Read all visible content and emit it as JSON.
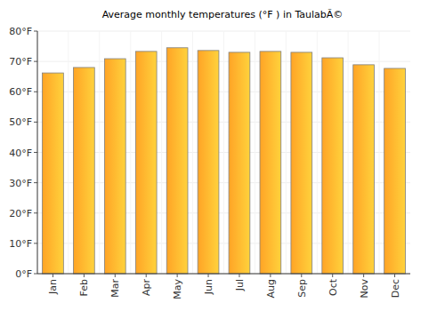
{
  "chart_data": {
    "type": "bar",
    "title": "Average monthly temperatures (°F ) in TaulabÃ©",
    "categories": [
      "Jan",
      "Feb",
      "Mar",
      "Apr",
      "May",
      "Jun",
      "Jul",
      "Aug",
      "Sep",
      "Oct",
      "Nov",
      "Dec"
    ],
    "values": [
      66.2,
      68,
      70.9,
      73.3,
      74.5,
      73.6,
      73,
      73.3,
      73,
      71.2,
      68.9,
      67.7
    ],
    "color": "#ffa426",
    "ylim": [
      0,
      80
    ],
    "yticks": [
      {
        "value": 0,
        "label": "0°F"
      },
      {
        "value": 10,
        "label": "10°F"
      },
      {
        "value": 20,
        "label": "20°F"
      },
      {
        "value": 30,
        "label": "30°F"
      },
      {
        "value": 40,
        "label": "40°F"
      },
      {
        "value": 50,
        "label": "50°F"
      },
      {
        "value": 60,
        "label": "60°F"
      },
      {
        "value": 70,
        "label": "70°F"
      },
      {
        "value": 80,
        "label": "80°F"
      }
    ],
    "grid": true
  }
}
